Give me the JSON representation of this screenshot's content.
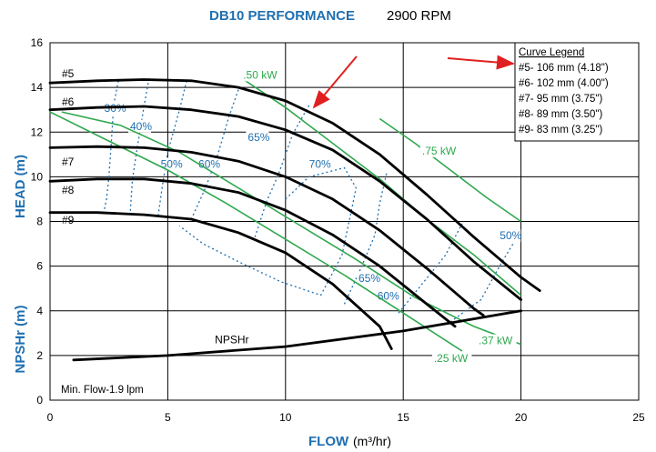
{
  "chart_data": {
    "type": "line",
    "title": "DB10 PERFORMANCE",
    "subtitle": "2900 RPM",
    "xlabel": "FLOW",
    "xlabel_unit": "(m³/hr)",
    "ylabel_head": "HEAD (m)",
    "ylabel_npsh": "NPSHr (m)",
    "xlim": [
      0,
      25
    ],
    "ylim": [
      0,
      16
    ],
    "xticks": [
      "0",
      "5",
      "10",
      "15",
      "20",
      "25"
    ],
    "yticks": [
      "0",
      "2",
      "4",
      "6",
      "8",
      "10",
      "12",
      "14",
      "16"
    ],
    "colors": {
      "title": "#1f6fb0",
      "curve": "#000000",
      "efficiency": "#1f6fb0",
      "power": "#2fa84f",
      "arrow": "#e02020",
      "grid": "#000000"
    },
    "impeller_curves": [
      {
        "label": "#5",
        "x": [
          0,
          2,
          4,
          6,
          8,
          10,
          12,
          14,
          16,
          18,
          20,
          20.8
        ],
        "y": [
          14.2,
          14.3,
          14.35,
          14.3,
          14.0,
          13.4,
          12.4,
          11.0,
          9.2,
          7.3,
          5.5,
          4.9
        ]
      },
      {
        "label": "#6",
        "x": [
          0,
          2,
          4,
          6,
          8,
          10,
          12,
          14,
          16,
          18,
          20
        ],
        "y": [
          13.0,
          13.1,
          13.15,
          13.0,
          12.7,
          12.1,
          11.2,
          9.8,
          8.1,
          6.2,
          4.5
        ]
      },
      {
        "label": "#7",
        "x": [
          0,
          2,
          4,
          6,
          8,
          10,
          12,
          14,
          16,
          18,
          18.4
        ],
        "y": [
          11.3,
          11.35,
          11.3,
          11.1,
          10.7,
          10.0,
          9.0,
          7.6,
          5.9,
          4.1,
          3.8
        ]
      },
      {
        "label": "#8",
        "x": [
          0,
          2,
          4,
          6,
          8,
          10,
          12,
          14,
          16,
          17.2
        ],
        "y": [
          9.8,
          9.9,
          9.9,
          9.7,
          9.3,
          8.5,
          7.4,
          6.0,
          4.3,
          3.3
        ]
      },
      {
        "label": "#9",
        "x": [
          0,
          2,
          4,
          6,
          8,
          10,
          12,
          14,
          14.5
        ],
        "y": [
          8.4,
          8.4,
          8.3,
          8.1,
          7.5,
          6.6,
          5.2,
          3.3,
          2.3
        ]
      }
    ],
    "npshr_curve": {
      "label": "NPSHr",
      "x": [
        1,
        5,
        10,
        15,
        20
      ],
      "y": [
        1.8,
        2.0,
        2.4,
        3.1,
        4.0
      ]
    },
    "efficiency_curves": [
      {
        "label": "30%",
        "x": [
          2.9,
          2.7,
          2.6,
          2.5,
          2.4,
          2.3
        ],
        "y": [
          14.3,
          13.2,
          11.5,
          10.0,
          9.0,
          8.5
        ]
      },
      {
        "label": "40%",
        "x": [
          4.2,
          4.0,
          3.7,
          3.5,
          3.4
        ],
        "y": [
          14.4,
          13.2,
          11.3,
          9.9,
          8.3
        ]
      },
      {
        "label": "50%",
        "x": [
          5.8,
          5.5,
          5.0,
          4.8,
          4.6
        ],
        "y": [
          14.3,
          13.0,
          11.1,
          9.8,
          8.3
        ]
      },
      {
        "label": "60%",
        "x": [
          8.0,
          7.6,
          7.1,
          6.6,
          6.0
        ],
        "y": [
          13.9,
          12.7,
          10.9,
          9.5,
          8.1
        ]
      },
      {
        "label": "65%",
        "x": [
          11.0,
          10.3,
          9.7,
          9.2,
          8.7
        ],
        "y": [
          13.2,
          11.9,
          10.1,
          8.9,
          7.3
        ]
      },
      {
        "label": "70%",
        "x": [
          10.0,
          11.0,
          12.5,
          13.0,
          12.7,
          12.4,
          11.5,
          9.8,
          8.0,
          6.5,
          5.5
        ],
        "y": [
          9.0,
          10.0,
          10.4,
          9.5,
          8.0,
          6.5,
          4.7,
          5.3,
          6.2,
          7.0,
          7.8
        ]
      },
      {
        "label": "65%",
        "x": [
          12.5,
          13.2,
          13.8,
          14.0,
          14.3
        ],
        "y": [
          4.3,
          5.9,
          7.4,
          8.8,
          10.2
        ]
      },
      {
        "label": "60%",
        "x": [
          14.8,
          15.8,
          16.8,
          17.5
        ],
        "y": [
          3.9,
          5.2,
          6.5,
          7.9
        ]
      },
      {
        "label": "50%",
        "x": [
          17.0,
          18.3,
          19.2,
          19.9
        ],
        "y": [
          3.5,
          4.5,
          6.2,
          7.4
        ]
      }
    ],
    "power_curves": [
      {
        "label": ".25 kW",
        "x": [
          0,
          2.5,
          5,
          7.5,
          10,
          12.5,
          15,
          17.5
        ],
        "y": [
          12.9,
          11.6,
          10.3,
          8.8,
          7.2,
          5.6,
          3.9,
          2.2
        ]
      },
      {
        "label": ".37 kW",
        "x": [
          0.5,
          3,
          5.5,
          8,
          10.5,
          13,
          15.5,
          18,
          20
        ],
        "y": [
          12.9,
          12.3,
          11.1,
          9.5,
          7.9,
          6.3,
          4.6,
          3.3,
          2.5
        ]
      },
      {
        "label": ".50 kW",
        "x": [
          8.3,
          10,
          12,
          14,
          16,
          18,
          20
        ],
        "y": [
          14.3,
          13.1,
          11.5,
          9.9,
          8.1,
          6.5,
          4.7
        ]
      },
      {
        "label": ".75 kW",
        "x": [
          14,
          15.5,
          17,
          18.5,
          20
        ],
        "y": [
          12.6,
          11.5,
          10.3,
          9.1,
          8.0
        ]
      }
    ],
    "curve_legend": {
      "title": "Curve Legend",
      "entries": [
        "#5- 106 mm (4.18\")",
        "#6- 102 mm (4.00\")",
        "#7- 95 mm (3.75\")",
        "#8- 89 mm (3.50\")",
        "#9- 83 mm (3.25\")"
      ],
      "position": "top-right"
    },
    "annotations": {
      "min_flow": "Min. Flow-1.9 lpm",
      "npshr_label": "NPSHr"
    }
  }
}
